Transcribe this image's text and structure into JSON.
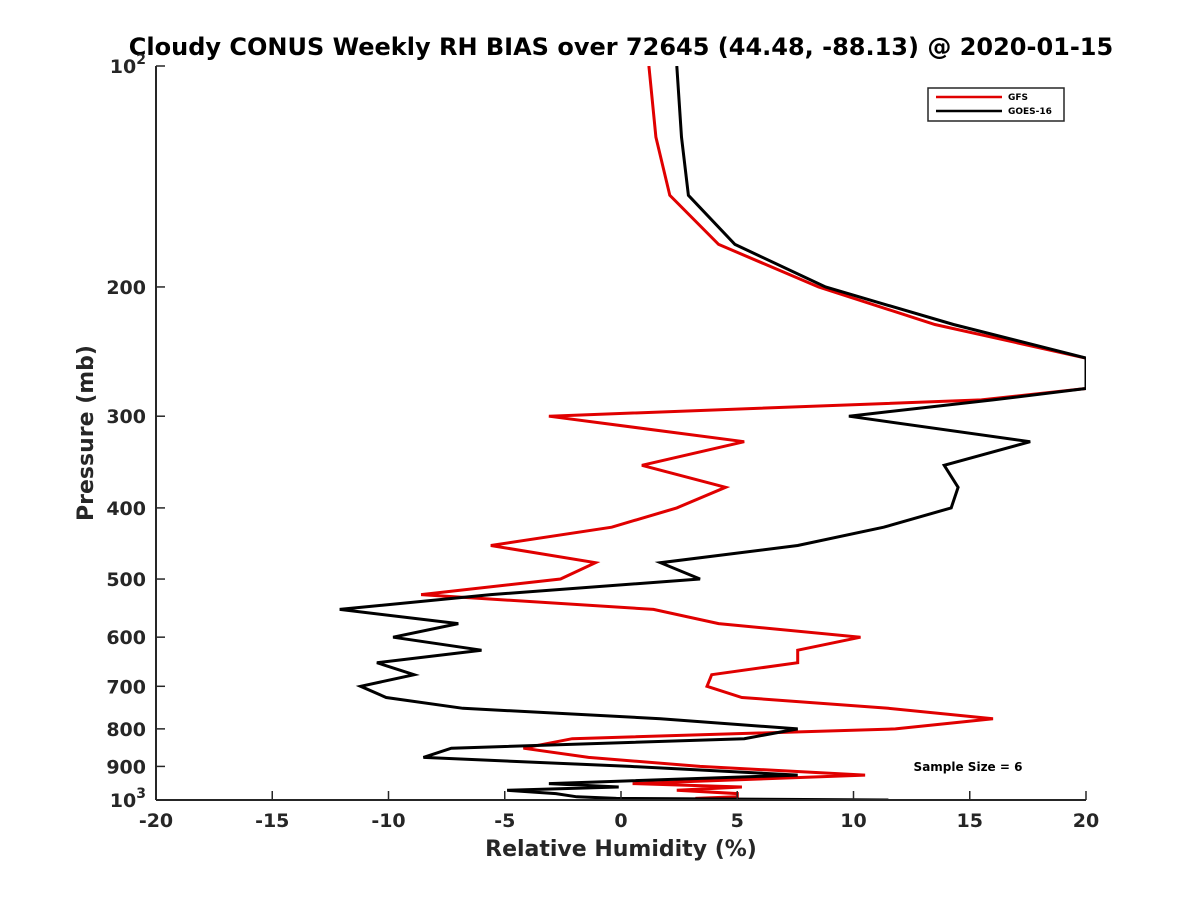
{
  "chart_data": {
    "type": "line",
    "title": "Cloudy CONUS Weekly RH BIAS over 72645 (44.48, -88.13) @ 2020-01-15",
    "xlabel": "Relative Humidity (%)",
    "ylabel": "Pressure (mb)",
    "xlim": [
      -20,
      20
    ],
    "ylim": [
      100,
      1000
    ],
    "y_scale": "log",
    "y_reversed": true,
    "grid": false,
    "legend_position": "top-right",
    "x_ticks": [
      "-20",
      "-15",
      "-10",
      "-5",
      "0",
      "5",
      "10",
      "15",
      "20"
    ],
    "x_tick_values": [
      -20,
      -15,
      -10,
      -5,
      0,
      5,
      10,
      15,
      20
    ],
    "y_ticks": [
      {
        "value": 100,
        "base": "10",
        "exp": "2"
      },
      {
        "value": 200,
        "label": "200"
      },
      {
        "value": 300,
        "label": "300"
      },
      {
        "value": 400,
        "label": "400"
      },
      {
        "value": 500,
        "label": "500"
      },
      {
        "value": 600,
        "label": "600"
      },
      {
        "value": 700,
        "label": "700"
      },
      {
        "value": 800,
        "label": "800"
      },
      {
        "value": 900,
        "label": "900"
      },
      {
        "value": 1000,
        "base": "10",
        "exp": "3"
      }
    ],
    "annotation": "Sample Size = 6",
    "series": [
      {
        "name": "GFS",
        "color": "#e00000",
        "points": [
          [
            1.2,
            100
          ],
          [
            1.5,
            125
          ],
          [
            2.1,
            150
          ],
          [
            4.2,
            175
          ],
          [
            8.5,
            200
          ],
          [
            13.5,
            225
          ],
          [
            20,
            250
          ],
          [
            20,
            275
          ],
          [
            15.5,
            285
          ],
          [
            -3.1,
            300
          ],
          [
            5.3,
            325
          ],
          [
            0.9,
            350
          ],
          [
            4.5,
            375
          ],
          [
            2.4,
            400
          ],
          [
            -0.4,
            425
          ],
          [
            -5.6,
            450
          ],
          [
            -1.1,
            475
          ],
          [
            -2.6,
            500
          ],
          [
            -8.6,
            525
          ],
          [
            1.4,
            550
          ],
          [
            4.2,
            575
          ],
          [
            10.3,
            600
          ],
          [
            7.6,
            625
          ],
          [
            7.6,
            650
          ],
          [
            3.9,
            675
          ],
          [
            3.7,
            700
          ],
          [
            5.2,
            725
          ],
          [
            11.5,
            750
          ],
          [
            16.0,
            775
          ],
          [
            11.8,
            800
          ],
          [
            -2.1,
            825
          ],
          [
            -4.2,
            850
          ],
          [
            -1.4,
            875
          ],
          [
            3.4,
            900
          ],
          [
            10.5,
            925
          ],
          [
            0.5,
            950
          ],
          [
            5.2,
            960
          ],
          [
            2.4,
            970
          ],
          [
            5.0,
            980
          ],
          [
            5.0,
            990
          ],
          [
            3.2,
            995
          ],
          [
            5.6,
            1000
          ]
        ]
      },
      {
        "name": "GOES-16",
        "color": "#000000",
        "points": [
          [
            2.4,
            100
          ],
          [
            2.6,
            125
          ],
          [
            2.9,
            150
          ],
          [
            4.9,
            175
          ],
          [
            8.8,
            200
          ],
          [
            14.3,
            225
          ],
          [
            20,
            250
          ],
          [
            20,
            275
          ],
          [
            16.0,
            285
          ],
          [
            9.8,
            300
          ],
          [
            17.6,
            325
          ],
          [
            13.9,
            350
          ],
          [
            14.5,
            375
          ],
          [
            14.2,
            400
          ],
          [
            11.3,
            425
          ],
          [
            7.6,
            450
          ],
          [
            1.7,
            475
          ],
          [
            3.4,
            500
          ],
          [
            -5.6,
            525
          ],
          [
            -12.1,
            550
          ],
          [
            -7.0,
            575
          ],
          [
            -9.8,
            600
          ],
          [
            -6.0,
            625
          ],
          [
            -10.5,
            650
          ],
          [
            -8.9,
            675
          ],
          [
            -11.2,
            700
          ],
          [
            -10.1,
            725
          ],
          [
            -6.8,
            750
          ],
          [
            1.7,
            775
          ],
          [
            7.6,
            800
          ],
          [
            5.3,
            825
          ],
          [
            -7.3,
            850
          ],
          [
            -8.5,
            875
          ],
          [
            0.4,
            900
          ],
          [
            7.6,
            925
          ],
          [
            -3.1,
            950
          ],
          [
            -0.1,
            960
          ],
          [
            -4.9,
            970
          ],
          [
            -2.8,
            980
          ],
          [
            -1.9,
            990
          ],
          [
            -0.2,
            995
          ],
          [
            11.5,
            1000
          ]
        ]
      }
    ]
  }
}
